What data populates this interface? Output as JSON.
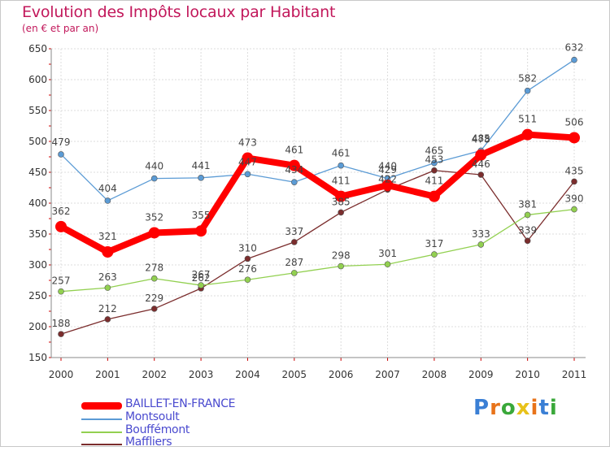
{
  "chart_data": {
    "type": "line",
    "title": "Evolution des Impôts locaux par Habitant",
    "subtitle": "(en € et par an)",
    "categories": [
      "2000",
      "2001",
      "2002",
      "2003",
      "2004",
      "2005",
      "2006",
      "2007",
      "2008",
      "2009",
      "2010",
      "2011"
    ],
    "ylim": [
      150,
      650
    ],
    "yticks": [
      150,
      200,
      250,
      300,
      350,
      400,
      450,
      500,
      550,
      600,
      650
    ],
    "grid": true,
    "series": [
      {
        "name": "BAILLET-EN-FRANCE",
        "color": "#ff0000",
        "values": [
          362,
          321,
          352,
          355,
          473,
          461,
          411,
          429,
          411,
          478,
          511,
          506
        ]
      },
      {
        "name": "Montsoult",
        "color": "#5b9bd5",
        "values": [
          479,
          404,
          440,
          441,
          447,
          434,
          461,
          440,
          465,
          485,
          582,
          632
        ]
      },
      {
        "name": "Bouffémont",
        "color": "#92d050",
        "values": [
          257,
          263,
          278,
          267,
          276,
          287,
          298,
          301,
          317,
          333,
          381,
          390
        ]
      },
      {
        "name": "Maffliers",
        "color": "#7b2d2d",
        "values": [
          188,
          212,
          229,
          262,
          310,
          337,
          385,
          422,
          453,
          446,
          339,
          435
        ]
      }
    ]
  },
  "logo": {
    "letters": [
      "P",
      "r",
      "o",
      "x",
      "i",
      "t",
      "i"
    ],
    "colors": [
      "#3a7fd5",
      "#e8731a",
      "#3aa83a",
      "#e8c21a",
      "#e8731a",
      "#3a7fd5",
      "#3aa83a"
    ]
  }
}
